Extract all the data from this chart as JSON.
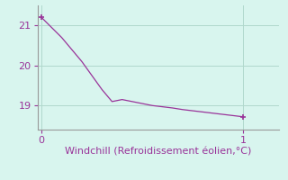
{
  "x": [
    0,
    0.05,
    0.1,
    0.15,
    0.2,
    0.25,
    0.3,
    0.35,
    0.4,
    0.45,
    0.5,
    0.55,
    0.6,
    0.65,
    0.7,
    0.75,
    0.8,
    0.85,
    0.9,
    0.95,
    1.0
  ],
  "y": [
    21.2,
    20.95,
    20.7,
    20.4,
    20.1,
    19.75,
    19.4,
    19.1,
    19.15,
    19.1,
    19.05,
    19.0,
    18.97,
    18.94,
    18.9,
    18.87,
    18.84,
    18.81,
    18.78,
    18.75,
    18.72
  ],
  "line_color": "#993399",
  "marker_color": "#993399",
  "background_color": "#d8f5ee",
  "grid_color": "#b0d8cc",
  "axis_color": "#999999",
  "text_color": "#993399",
  "xlabel": "Windchill (Refroidissement éolien,°C)",
  "xlim": [
    -0.02,
    1.18
  ],
  "ylim": [
    18.4,
    21.5
  ],
  "yticks": [
    19,
    20,
    21
  ],
  "xticks": [
    0,
    1
  ],
  "label_fontsize": 8,
  "tick_fontsize": 8
}
